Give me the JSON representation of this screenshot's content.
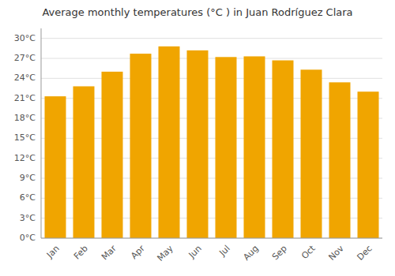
{
  "chart_data": {
    "type": "bar",
    "title": "Average monthly temperatures (°C ) in Juan Rodrí­guez Clara",
    "categories": [
      "Jan",
      "Feb",
      "Mar",
      "Apr",
      "May",
      "Jun",
      "Jul",
      "Aug",
      "Sep",
      "Oct",
      "Nov",
      "Dec"
    ],
    "values": [
      21.3,
      22.8,
      25.0,
      27.7,
      28.8,
      28.2,
      27.2,
      27.3,
      26.7,
      25.3,
      23.4,
      22.0
    ],
    "color": "#F0A500",
    "ylim": [
      0,
      31.5
    ],
    "yticks": [
      {
        "value": 0,
        "label": "0°C"
      },
      {
        "value": 3,
        "label": "3°C"
      },
      {
        "value": 6,
        "label": "6°C"
      },
      {
        "value": 9,
        "label": "9°C"
      },
      {
        "value": 12,
        "label": "12°C"
      },
      {
        "value": 15,
        "label": "15°C"
      },
      {
        "value": 18,
        "label": "18°C"
      },
      {
        "value": 21,
        "label": "21°C"
      },
      {
        "value": 24,
        "label": "24°C"
      },
      {
        "value": 27,
        "label": "27°C"
      },
      {
        "value": 30,
        "label": "30°C"
      }
    ],
    "grid": true
  }
}
